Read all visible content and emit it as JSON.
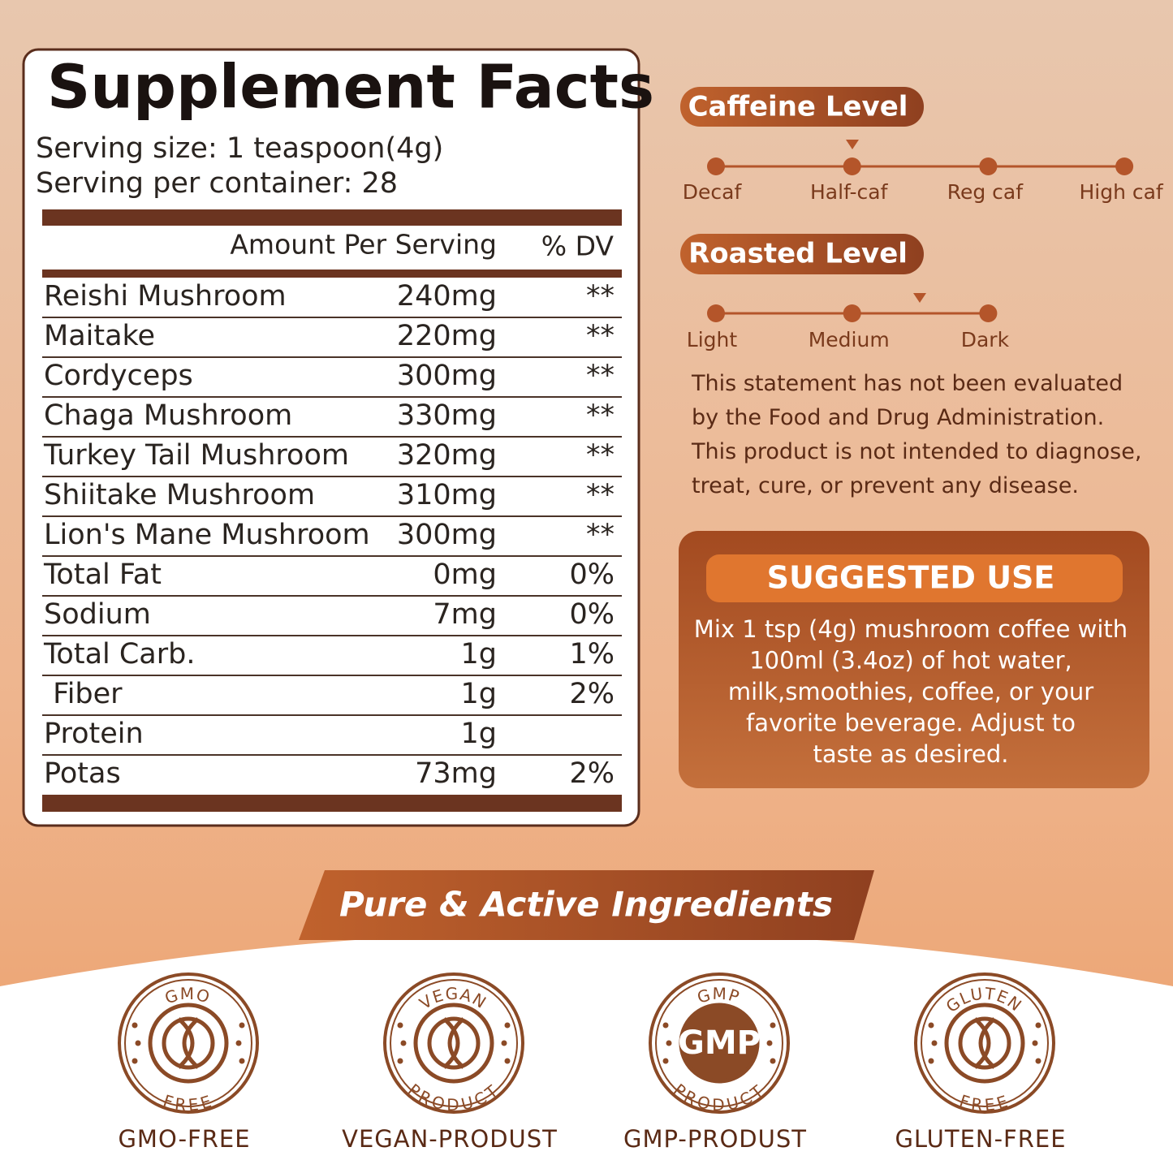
{
  "facts": {
    "title": "Supplement Facts",
    "serving_size": "Serving size: 1 teaspoon(4g)",
    "servings": "Serving per container: 28",
    "amount_header": "Amount Per Serving",
    "dv_header": "% DV",
    "rows": [
      {
        "name": "Reishi Mushroom",
        "amount": "240mg",
        "dv": "**"
      },
      {
        "name": "Maitake",
        "amount": "220mg",
        "dv": "**"
      },
      {
        "name": "Cordyceps",
        "amount": "300mg",
        "dv": "**"
      },
      {
        "name": "Chaga Mushroom",
        "amount": "330mg",
        "dv": "**"
      },
      {
        "name": "Turkey Tail Mushroom",
        "amount": "320mg",
        "dv": "**"
      },
      {
        "name": "Shiitake Mushroom",
        "amount": "310mg",
        "dv": "**"
      },
      {
        "name": "Lion's Mane Mushroom",
        "amount": "300mg",
        "dv": "**"
      },
      {
        "name": "Total Fat",
        "amount": "0mg",
        "dv": "0%"
      },
      {
        "name": "Sodium",
        "amount": "7mg",
        "dv": "0%"
      },
      {
        "name": "Total Carb.",
        "amount": "1g",
        "dv": "1%"
      },
      {
        "name": " Fiber",
        "amount": "1g",
        "dv": "2%"
      },
      {
        "name": "Protein",
        "amount": "1g"
      },
      {
        "name": "Potas",
        "amount": "73mg",
        "dv": "2%"
      }
    ]
  },
  "caffeine": {
    "title": "Caffeine Level",
    "levels": [
      "Decaf",
      "Half-caf",
      "Reg caf",
      "High caf"
    ]
  },
  "roast": {
    "title": "Roasted Level",
    "levels": [
      "Light",
      "Medium",
      "Dark"
    ]
  },
  "disclaimer": "This statement has not been evaluated by the Food and Drug Administration. This product is not intended to diagnose, treat, cure, or prevent any disease.",
  "suggested_use": {
    "title": "SUGGESTED USE",
    "lines": [
      "Mix 1 tsp (4g) mushroom coffee with",
      "100ml (3.4oz) of hot water,",
      "milk,smoothies, coffee, or your",
      "favorite beverage. Adjust to",
      "taste as desired."
    ]
  },
  "banner": "Pure & Active Ingredients",
  "badges": [
    {
      "top": "GMO",
      "bottom": "FREE",
      "label": "GMO-FREE"
    },
    {
      "top": "VEGAN",
      "bottom": "PRODUCT",
      "label": "VEGAN-PRODUST"
    },
    {
      "top": "GMP",
      "center": "GMP",
      "bottom": "PRODUCT",
      "label": "GMP-PRODUST"
    },
    {
      "top": "GLUTEN",
      "bottom": "FREE",
      "label": "GLUTEN-FREE"
    }
  ]
}
